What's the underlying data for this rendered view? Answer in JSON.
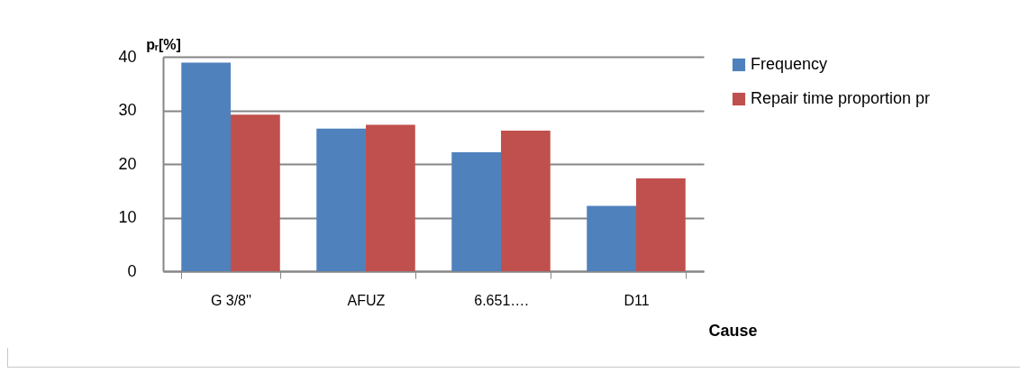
{
  "chart_data": {
    "type": "bar",
    "categories": [
      "G 3/8''",
      "AFUZ",
      "6.651….",
      "D11"
    ],
    "xlabel": "Cause",
    "ylabel": "pᵣ[%]",
    "series": [
      {
        "name": "Frequency",
        "color": "#4f81bd",
        "values": [
          38.9,
          26.6,
          22.2,
          12.2
        ]
      },
      {
        "name": "Repair time proportion pr",
        "color": "#c0504d",
        "values": [
          29.2,
          27.3,
          26.2,
          17.3
        ]
      }
    ],
    "ylim": [
      0,
      40
    ],
    "yticks": [
      0,
      10,
      20,
      30,
      40
    ],
    "grid": "y",
    "legend": "right"
  }
}
